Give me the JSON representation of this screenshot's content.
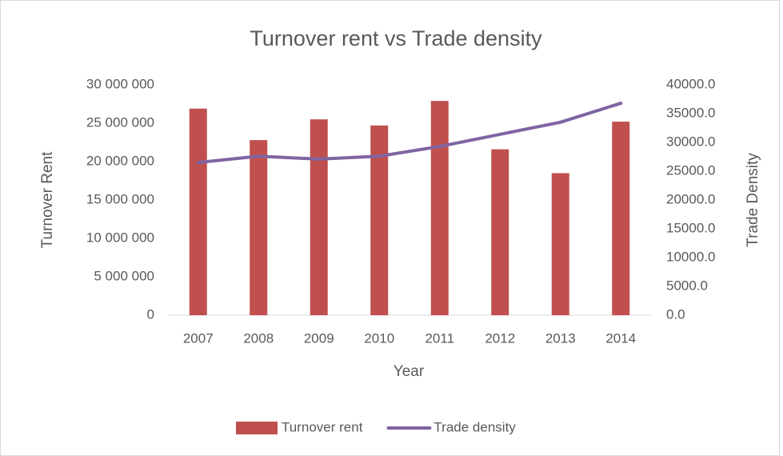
{
  "chart_data": {
    "type": "bar-line",
    "title": "Turnover rent vs Trade density",
    "xlabel": "Year",
    "ylabel": "Turnover Rent",
    "y2label": "Trade Density",
    "categories": [
      "2007",
      "2008",
      "2009",
      "2010",
      "2011",
      "2012",
      "2013",
      "2014"
    ],
    "series": [
      {
        "name": "Turnover rent",
        "type": "bar",
        "color": "#c0504d",
        "axis": "y",
        "values": [
          26900000,
          22800000,
          25500000,
          24700000,
          27900000,
          21600000,
          18500000,
          25200000
        ]
      },
      {
        "name": "Trade density",
        "type": "line",
        "color": "#8064a2",
        "axis": "y2",
        "values": [
          26500,
          27600,
          27100,
          27600,
          29300,
          31400,
          33500,
          36800
        ]
      }
    ],
    "ylim": [
      0,
      30000000
    ],
    "yticks": [
      0,
      {
        "value": 5000000,
        "label": "5 000 000"
      },
      {
        "value": 10000000,
        "label": "10 000 000"
      },
      {
        "value": 15000000,
        "label": "15 000 000"
      },
      {
        "value": 20000000,
        "label": "20 000 000"
      },
      {
        "value": 25000000,
        "label": "25 000 000"
      },
      {
        "value": 30000000,
        "label": "30 000 000"
      }
    ],
    "y2lim": [
      0,
      40000
    ],
    "y2ticks": [
      {
        "value": 0,
        "label": "0.0"
      },
      {
        "value": 5000,
        "label": "5000.0"
      },
      {
        "value": 10000,
        "label": "10000.0"
      },
      {
        "value": 15000,
        "label": "15000.0"
      },
      {
        "value": 20000,
        "label": "20000.0"
      },
      {
        "value": 25000,
        "label": "25000.0"
      },
      {
        "value": 30000,
        "label": "30000.0"
      },
      {
        "value": 35000,
        "label": "35000.0"
      },
      {
        "value": 40000,
        "label": "40000.0"
      }
    ],
    "grid": false,
    "legend": "bottom"
  }
}
